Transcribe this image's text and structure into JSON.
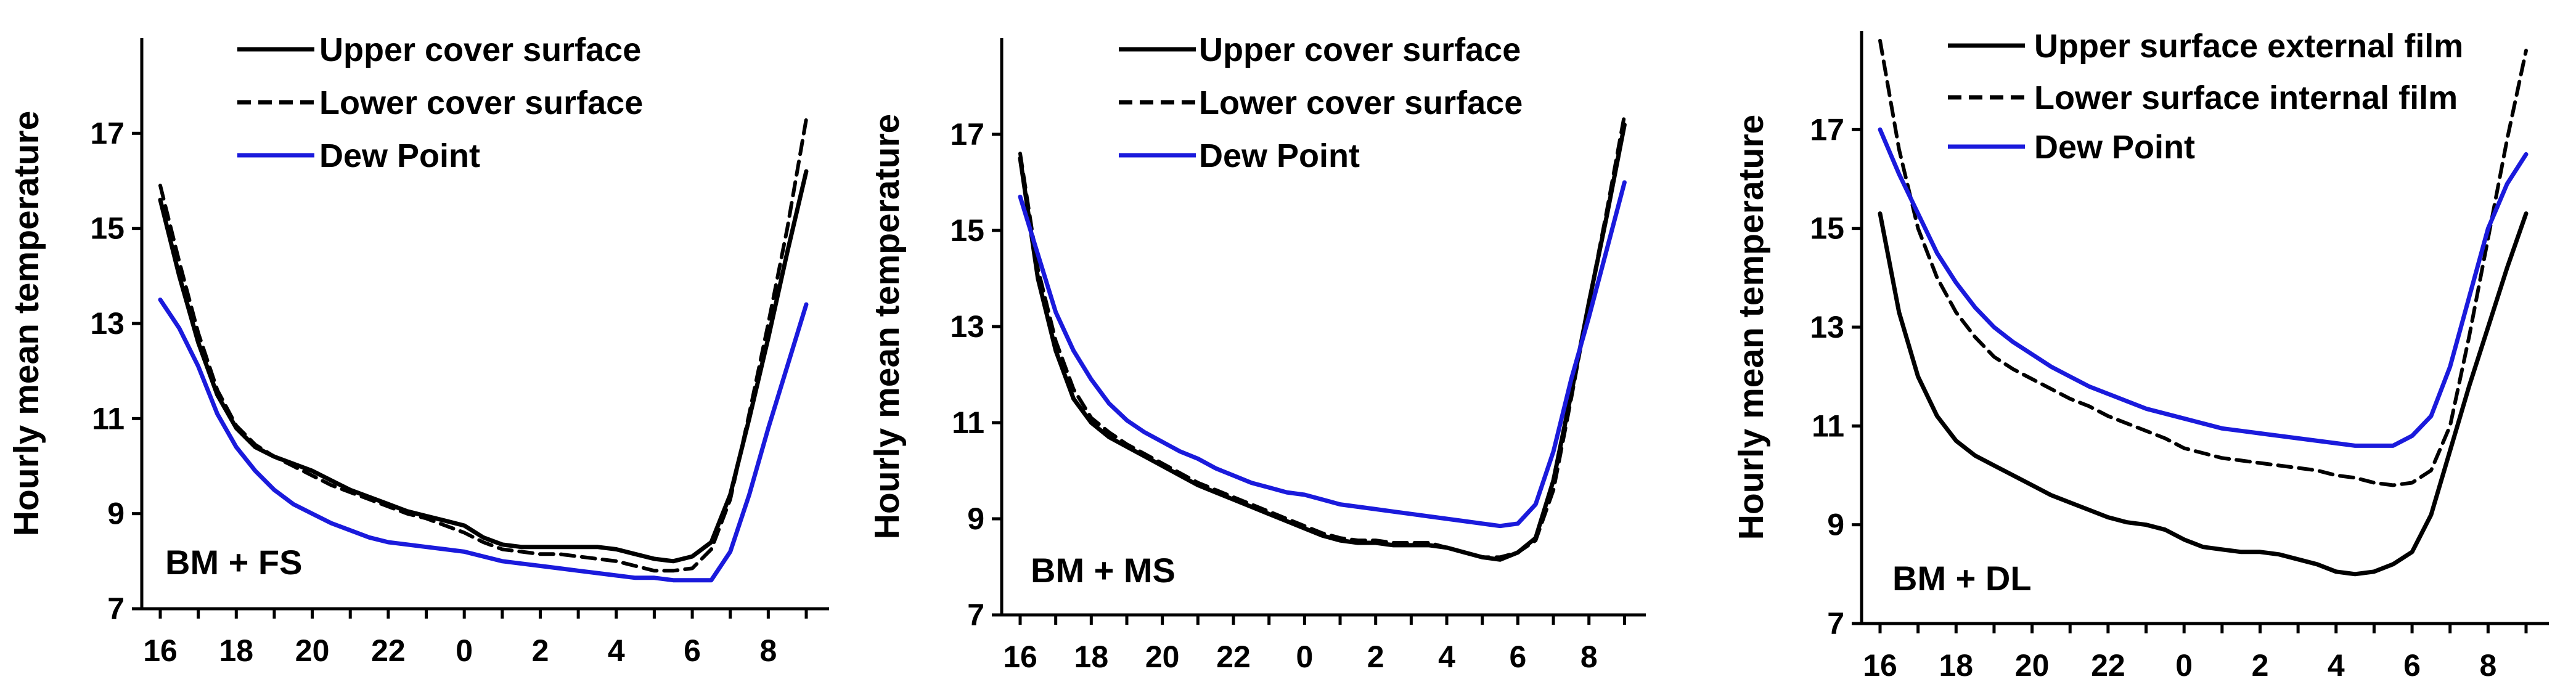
{
  "chart_data": [
    {
      "type": "line",
      "annotation": "BM + FS",
      "ylabel": "Hourly mean temperature",
      "xlabel": "",
      "ylim": [
        7,
        19
      ],
      "yticks": [
        7,
        9,
        11,
        13,
        15,
        17
      ],
      "xticks": [
        "16",
        "18",
        "20",
        "22",
        "0",
        "2",
        "4",
        "6",
        "8"
      ],
      "x_hours": [
        16,
        16.5,
        17,
        17.5,
        18,
        18.5,
        19,
        19.5,
        20,
        20.5,
        21,
        21.5,
        22,
        22.5,
        23,
        23.5,
        24,
        24.5,
        25,
        25.5,
        26,
        26.5,
        27,
        27.5,
        28,
        28.5,
        29,
        29.5,
        30,
        30.5,
        31,
        31.5,
        32,
        32.5,
        33
      ],
      "legend_position": "top-center",
      "series": [
        {
          "name": "Upper cover surface",
          "color": "#000000",
          "style": "solid",
          "values": [
            15.6,
            14.0,
            12.6,
            11.5,
            10.8,
            10.4,
            10.2,
            10.05,
            9.9,
            9.7,
            9.5,
            9.35,
            9.2,
            9.05,
            8.95,
            8.85,
            8.75,
            8.5,
            8.35,
            8.3,
            8.3,
            8.3,
            8.3,
            8.3,
            8.25,
            8.15,
            8.05,
            8.0,
            8.1,
            8.4,
            9.4,
            11.0,
            12.7,
            14.5,
            16.2
          ]
        },
        {
          "name": "Lower cover surface",
          "color": "#000000",
          "style": "dashed",
          "values": [
            15.9,
            14.3,
            12.8,
            11.6,
            10.85,
            10.45,
            10.2,
            10.0,
            9.8,
            9.6,
            9.45,
            9.3,
            9.15,
            9.0,
            8.9,
            8.75,
            8.6,
            8.4,
            8.25,
            8.2,
            8.15,
            8.15,
            8.1,
            8.05,
            8.0,
            7.9,
            7.8,
            7.8,
            7.85,
            8.25,
            9.3,
            11.1,
            13.0,
            15.0,
            17.3
          ]
        },
        {
          "name": "Dew Point",
          "color": "#1a1adc",
          "style": "solid",
          "values": [
            13.5,
            12.9,
            12.1,
            11.1,
            10.4,
            9.9,
            9.5,
            9.2,
            9.0,
            8.8,
            8.65,
            8.5,
            8.4,
            8.35,
            8.3,
            8.25,
            8.2,
            8.1,
            8.0,
            7.95,
            7.9,
            7.85,
            7.8,
            7.75,
            7.7,
            7.65,
            7.65,
            7.6,
            7.6,
            7.6,
            8.2,
            9.4,
            10.8,
            12.1,
            13.4
          ]
        }
      ]
    },
    {
      "type": "line",
      "annotation": "BM + MS",
      "ylabel": "Hourly mean temperature",
      "xlabel": "",
      "ylim": [
        7,
        19
      ],
      "yticks": [
        7,
        9,
        11,
        13,
        15,
        17
      ],
      "xticks": [
        "16",
        "18",
        "20",
        "22",
        "0",
        "2",
        "4",
        "6",
        "8"
      ],
      "x_hours": [
        16,
        16.5,
        17,
        17.5,
        18,
        18.5,
        19,
        19.5,
        20,
        20.5,
        21,
        21.5,
        22,
        22.5,
        23,
        23.5,
        24,
        24.5,
        25,
        25.5,
        26,
        26.5,
        27,
        27.5,
        28,
        28.5,
        29,
        29.5,
        30,
        30.5,
        31,
        31.5,
        32,
        32.5,
        33
      ],
      "legend_position": "top-center",
      "series": [
        {
          "name": "Upper cover surface",
          "color": "#000000",
          "style": "solid",
          "values": [
            16.5,
            14.0,
            12.5,
            11.5,
            11.0,
            10.7,
            10.5,
            10.3,
            10.1,
            9.9,
            9.7,
            9.55,
            9.4,
            9.25,
            9.1,
            8.95,
            8.8,
            8.65,
            8.55,
            8.5,
            8.5,
            8.45,
            8.45,
            8.45,
            8.4,
            8.3,
            8.2,
            8.15,
            8.3,
            8.6,
            9.8,
            11.6,
            13.5,
            15.3,
            17.2
          ]
        },
        {
          "name": "Lower cover surface",
          "color": "#000000",
          "style": "dashed",
          "values": [
            16.6,
            14.2,
            12.7,
            11.7,
            11.1,
            10.8,
            10.55,
            10.35,
            10.15,
            9.95,
            9.75,
            9.6,
            9.45,
            9.3,
            9.15,
            9.0,
            8.85,
            8.7,
            8.6,
            8.55,
            8.55,
            8.5,
            8.5,
            8.5,
            8.4,
            8.3,
            8.2,
            8.2,
            8.3,
            8.55,
            9.6,
            11.5,
            13.5,
            15.4,
            17.4
          ]
        },
        {
          "name": "Dew Point",
          "color": "#1a1adc",
          "style": "solid",
          "values": [
            15.7,
            14.5,
            13.3,
            12.5,
            11.9,
            11.4,
            11.05,
            10.8,
            10.6,
            10.4,
            10.25,
            10.05,
            9.9,
            9.75,
            9.65,
            9.55,
            9.5,
            9.4,
            9.3,
            9.25,
            9.2,
            9.15,
            9.1,
            9.05,
            9.0,
            8.95,
            8.9,
            8.85,
            8.9,
            9.3,
            10.4,
            11.9,
            13.2,
            14.6,
            16.0
          ]
        }
      ]
    },
    {
      "type": "line",
      "annotation": "BM + DL",
      "ylabel": "Hourly mean temperature",
      "xlabel": "",
      "ylim": [
        7,
        19
      ],
      "yticks": [
        7,
        9,
        11,
        13,
        15,
        17
      ],
      "xticks": [
        "16",
        "18",
        "20",
        "22",
        "0",
        "2",
        "4",
        "6",
        "8"
      ],
      "x_hours": [
        16,
        16.5,
        17,
        17.5,
        18,
        18.5,
        19,
        19.5,
        20,
        20.5,
        21,
        21.5,
        22,
        22.5,
        23,
        23.5,
        24,
        24.5,
        25,
        25.5,
        26,
        26.5,
        27,
        27.5,
        28,
        28.5,
        29,
        29.5,
        30,
        30.5,
        31,
        31.5,
        32,
        32.5,
        33
      ],
      "legend_position": "top-center",
      "series": [
        {
          "name": "Upper surface external film",
          "color": "#000000",
          "style": "solid",
          "values": [
            15.3,
            13.3,
            12.0,
            11.2,
            10.7,
            10.4,
            10.2,
            10.0,
            9.8,
            9.6,
            9.45,
            9.3,
            9.15,
            9.05,
            9.0,
            8.9,
            8.7,
            8.55,
            8.5,
            8.45,
            8.45,
            8.4,
            8.3,
            8.2,
            8.05,
            8.0,
            8.05,
            8.2,
            8.45,
            9.2,
            10.5,
            11.8,
            13.0,
            14.2,
            15.3
          ]
        },
        {
          "name": "Lower surface internal film",
          "color": "#000000",
          "style": "dashed",
          "values": [
            18.8,
            16.6,
            15.0,
            14.0,
            13.3,
            12.8,
            12.4,
            12.15,
            11.95,
            11.75,
            11.55,
            11.4,
            11.2,
            11.05,
            10.9,
            10.75,
            10.55,
            10.45,
            10.35,
            10.3,
            10.25,
            10.2,
            10.15,
            10.1,
            10.0,
            9.95,
            9.85,
            9.8,
            9.85,
            10.1,
            11.0,
            12.8,
            14.8,
            16.8,
            18.6
          ]
        },
        {
          "name": "Dew Point",
          "color": "#1a1adc",
          "style": "solid",
          "values": [
            17.0,
            16.1,
            15.3,
            14.5,
            13.9,
            13.4,
            13.0,
            12.7,
            12.45,
            12.2,
            12.0,
            11.8,
            11.65,
            11.5,
            11.35,
            11.25,
            11.15,
            11.05,
            10.95,
            10.9,
            10.85,
            10.8,
            10.75,
            10.7,
            10.65,
            10.6,
            10.6,
            10.6,
            10.8,
            11.2,
            12.2,
            13.6,
            15.0,
            15.9,
            16.5
          ]
        }
      ]
    }
  ]
}
